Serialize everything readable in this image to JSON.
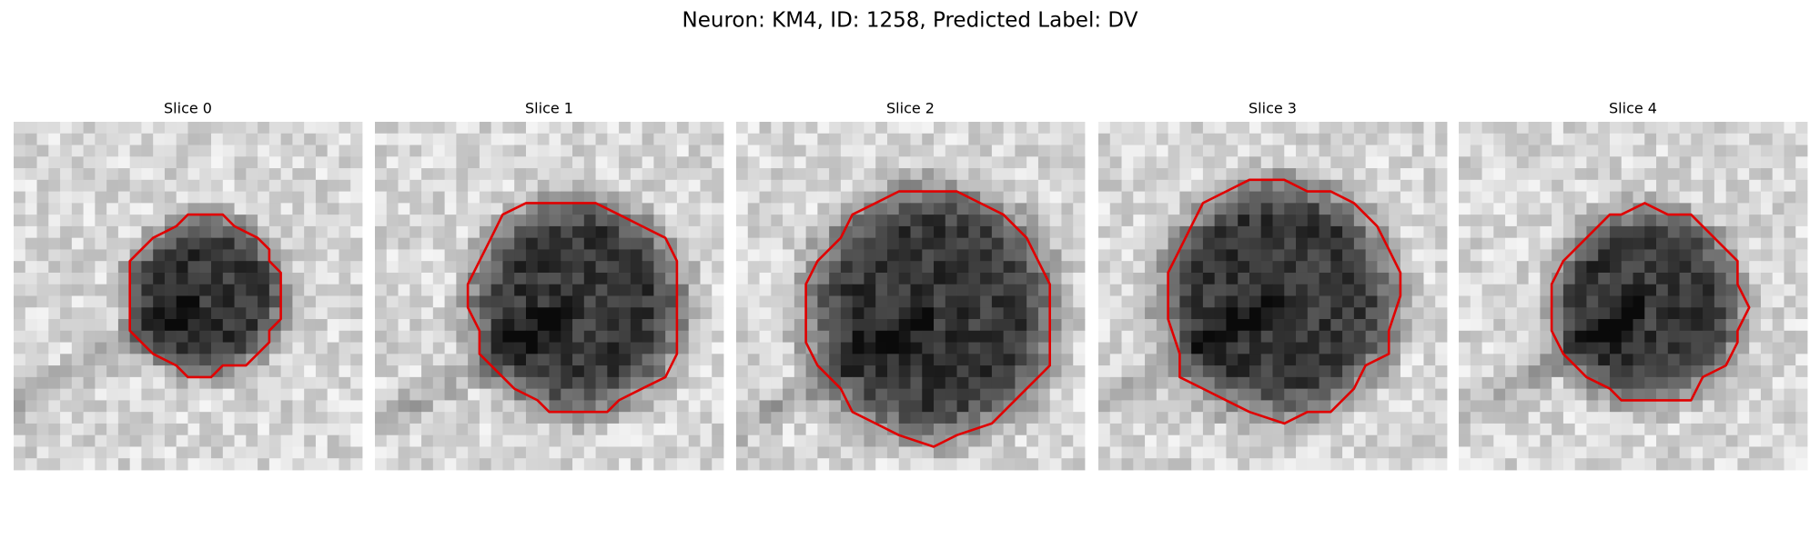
{
  "title": "Neuron: KM4, ID: 1258, Predicted Label: DV",
  "panels": [
    {
      "title": "Slice 0"
    },
    {
      "title": "Slice 1"
    },
    {
      "title": "Slice 2"
    },
    {
      "title": "Slice 3"
    },
    {
      "title": "Slice 4"
    }
  ]
}
